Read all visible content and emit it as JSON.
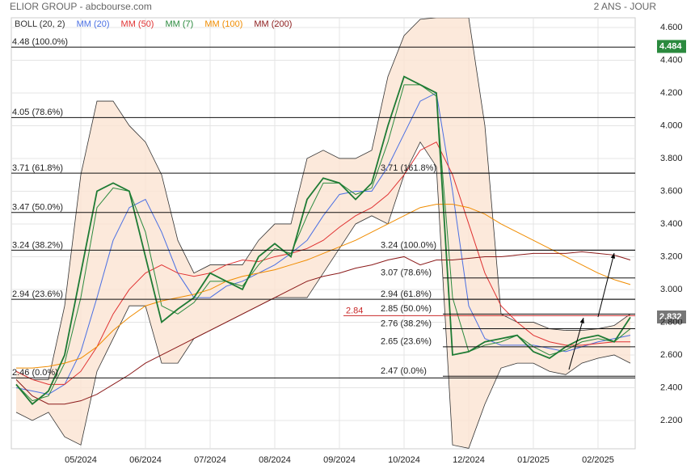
{
  "header": {
    "title": "ELIOR GROUP - abcbourse.com",
    "period": "2 ANS - JOUR"
  },
  "chart_data": {
    "type": "line",
    "categories": [
      null,
      null,
      null,
      null,
      "05/2024",
      null,
      null,
      null,
      "06/2024",
      null,
      null,
      null,
      "07/2024",
      null,
      null,
      null,
      "08/2024",
      null,
      null,
      null,
      "09/2024",
      null,
      null,
      null,
      "10/2024",
      null,
      null,
      null,
      "12/2024",
      null,
      null,
      null,
      "01/2025",
      null,
      null,
      null,
      "02/2025",
      null,
      null
    ],
    "price": {
      "color": "#1e7b34",
      "values": [
        2.42,
        2.3,
        2.38,
        2.6,
        3.1,
        3.6,
        3.65,
        3.6,
        3.2,
        2.8,
        2.88,
        2.95,
        3.1,
        3.05,
        3.0,
        3.2,
        3.28,
        3.2,
        3.55,
        3.68,
        3.65,
        3.55,
        3.65,
        4.0,
        4.3,
        4.25,
        4.2,
        2.6,
        2.62,
        2.68,
        2.7,
        2.72,
        2.62,
        2.58,
        2.65,
        2.7,
        2.72,
        2.68,
        2.83
      ]
    },
    "bollinger": {
      "name": "BOLL (20, 2)",
      "color": "#333333",
      "upper": [
        2.5,
        2.45,
        2.45,
        2.9,
        3.7,
        4.15,
        4.15,
        4.0,
        3.9,
        3.7,
        3.3,
        3.1,
        3.15,
        3.15,
        3.15,
        3.3,
        3.4,
        3.4,
        3.8,
        3.85,
        3.8,
        3.8,
        3.85,
        4.3,
        4.55,
        4.65,
        4.66,
        4.66,
        4.66,
        4.0,
        2.85,
        2.8,
        2.8,
        2.76,
        2.75,
        2.75,
        2.76,
        2.78,
        2.85
      ],
      "lower": [
        2.25,
        2.2,
        2.25,
        2.1,
        2.05,
        2.5,
        2.7,
        2.9,
        2.9,
        2.55,
        2.55,
        2.7,
        2.75,
        2.8,
        2.85,
        2.9,
        2.95,
        2.95,
        2.95,
        3.1,
        3.25,
        3.4,
        3.45,
        3.4,
        3.7,
        3.9,
        3.75,
        2.05,
        2.03,
        2.3,
        2.52,
        2.55,
        2.55,
        2.5,
        2.48,
        2.55,
        2.58,
        2.6,
        2.55
      ]
    },
    "series": [
      {
        "name": "MM (20)",
        "color": "#4a6fe3",
        "values": [
          2.4,
          2.38,
          2.36,
          2.42,
          2.62,
          2.95,
          3.3,
          3.5,
          3.55,
          3.35,
          3.1,
          2.95,
          2.95,
          3.02,
          3.05,
          3.1,
          3.15,
          3.22,
          3.3,
          3.45,
          3.58,
          3.6,
          3.6,
          3.75,
          3.95,
          4.15,
          4.2,
          3.6,
          2.9,
          2.7,
          2.66,
          2.66,
          2.66,
          2.64,
          2.62,
          2.65,
          2.68,
          2.7,
          2.72
        ]
      },
      {
        "name": "MM (50)",
        "color": "#e03131",
        "values": [
          2.5,
          2.45,
          2.42,
          2.42,
          2.5,
          2.65,
          2.85,
          3.0,
          3.1,
          3.15,
          3.1,
          3.08,
          3.1,
          3.15,
          3.18,
          3.17,
          3.2,
          3.22,
          3.25,
          3.3,
          3.38,
          3.45,
          3.5,
          3.58,
          3.7,
          3.85,
          3.9,
          3.7,
          3.4,
          3.1,
          2.9,
          2.8,
          2.72,
          2.68,
          2.66,
          2.66,
          2.67,
          2.68,
          2.68
        ]
      },
      {
        "name": "MM (7)",
        "color": "#2b8a3e",
        "values": [
          2.42,
          2.32,
          2.35,
          2.55,
          2.95,
          3.5,
          3.62,
          3.6,
          3.35,
          2.9,
          2.85,
          2.92,
          3.05,
          3.05,
          3.02,
          3.15,
          3.25,
          3.22,
          3.45,
          3.65,
          3.65,
          3.58,
          3.62,
          3.9,
          4.25,
          4.25,
          4.18,
          2.95,
          2.62,
          2.66,
          2.68,
          2.72,
          2.65,
          2.6,
          2.63,
          2.68,
          2.7,
          2.68,
          2.76
        ]
      },
      {
        "name": "MM (100)",
        "color": "#f08c00",
        "values": [
          2.52,
          2.52,
          2.53,
          2.55,
          2.58,
          2.65,
          2.75,
          2.83,
          2.9,
          2.93,
          2.95,
          2.97,
          3.0,
          3.05,
          3.08,
          3.1,
          3.12,
          3.15,
          3.18,
          3.22,
          3.26,
          3.3,
          3.35,
          3.4,
          3.45,
          3.5,
          3.52,
          3.52,
          3.5,
          3.46,
          3.4,
          3.35,
          3.3,
          3.25,
          3.2,
          3.15,
          3.1,
          3.06,
          3.03
        ]
      },
      {
        "name": "MM (200)",
        "color": "#8b1a1a",
        "values": [
          2.45,
          2.35,
          2.3,
          2.3,
          2.32,
          2.36,
          2.42,
          2.48,
          2.55,
          2.6,
          2.65,
          2.7,
          2.75,
          2.8,
          2.85,
          2.9,
          2.95,
          3.0,
          3.05,
          3.08,
          3.1,
          3.13,
          3.15,
          3.18,
          3.2,
          3.15,
          3.18,
          3.18,
          3.19,
          3.2,
          3.2,
          3.21,
          3.22,
          3.22,
          3.22,
          3.23,
          3.22,
          3.21,
          3.18
        ]
      }
    ],
    "ylim": [
      2.027,
      4.659
    ],
    "yticks": [
      {
        "value": 2.2,
        "label": "2.200"
      },
      {
        "value": 2.4,
        "label": "2.400"
      },
      {
        "value": 2.6,
        "label": "2.600"
      },
      {
        "value": 2.8,
        "label": "2.800"
      },
      {
        "value": 3.0,
        "label": "3.000"
      },
      {
        "value": 3.2,
        "label": "3.200"
      },
      {
        "value": 3.4,
        "label": "3.400"
      },
      {
        "value": 3.6,
        "label": "3.600"
      },
      {
        "value": 3.8,
        "label": "3.800"
      },
      {
        "value": 4.0,
        "label": "4.000"
      },
      {
        "value": 4.2,
        "label": "4.200"
      },
      {
        "value": 4.4,
        "label": "4.400"
      },
      {
        "value": 4.6,
        "label": "4.600"
      }
    ],
    "fib_left": [
      {
        "value": 4.48,
        "label": "4.48 (100.0%)"
      },
      {
        "value": 4.05,
        "label": "4.05 (78.6%)"
      },
      {
        "value": 3.71,
        "label": "3.71 (61.8%)"
      },
      {
        "value": 3.47,
        "label": "3.47 (50.0%)"
      },
      {
        "value": 3.24,
        "label": "3.24 (38.2%)"
      },
      {
        "value": 2.94,
        "label": "2.94 (23.6%)"
      },
      {
        "value": 2.46,
        "label": "2.46 (0.0%)"
      }
    ],
    "fib_right": [
      {
        "value": 3.71,
        "label": "3.71 (161.8%)"
      },
      {
        "value": 3.24,
        "label": "3.24 (100.0%)"
      },
      {
        "value": 3.07,
        "label": "3.07 (78.6%)"
      },
      {
        "value": 2.94,
        "label": "2.94 (61.8%)"
      },
      {
        "value": 2.85,
        "label": "2.85 (50.0%)"
      },
      {
        "value": 2.76,
        "label": "2.76 (38.2%)"
      },
      {
        "value": 2.65,
        "label": "2.65 (23.6%)"
      },
      {
        "value": 2.47,
        "label": "2.47 (0.0%)"
      }
    ],
    "level_marker": {
      "value": 2.84,
      "label": "2.84",
      "color": "#c92a2a"
    },
    "price_tags": [
      {
        "value": 4.484,
        "label": "4.484",
        "color": "#2b8a3e"
      },
      {
        "value": 2.832,
        "label": "2.832",
        "color": "#777777"
      }
    ],
    "grid": true
  }
}
